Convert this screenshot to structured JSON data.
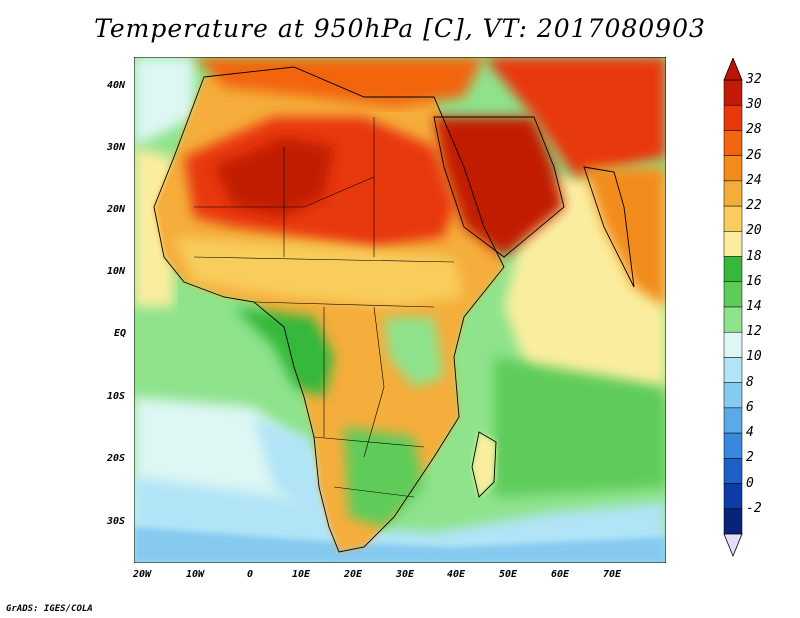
{
  "title": "Temperature at 950hPa [C], VT: 2017080903",
  "credit": "GrADS: IGES/COLA",
  "map": {
    "region": "Africa / Arabian Peninsula / Indian Ocean",
    "variable": "Temperature at 950hPa",
    "units": "C",
    "valid_time": "2017080903",
    "lat_labels": [
      "40N",
      "30N",
      "20N",
      "10N",
      "EQ",
      "10S",
      "20S",
      "30S"
    ],
    "lon_labels": [
      "20W",
      "10W",
      "0",
      "10E",
      "20E",
      "30E",
      "40E",
      "50E",
      "60E",
      "70E"
    ]
  },
  "colorbar": {
    "labels": [
      "32",
      "30",
      "28",
      "26",
      "24",
      "22",
      "20",
      "18",
      "16",
      "14",
      "12",
      "10",
      "8",
      "6",
      "4",
      "2",
      "0",
      "-2"
    ],
    "colors": [
      "#c21a06",
      "#e8390c",
      "#f2650f",
      "#f28c1c",
      "#f5ad3a",
      "#f8cd5c",
      "#faee9e",
      "#36b83a",
      "#5ecc5a",
      "#8ee38c",
      "#ddf7f4",
      "#b1e4f7",
      "#86caf0",
      "#5aaae8",
      "#3a88de",
      "#1d60c8",
      "#0e3ba6",
      "#08237a"
    ],
    "over_color": "#bd1503",
    "under_color": "#e4defa"
  }
}
